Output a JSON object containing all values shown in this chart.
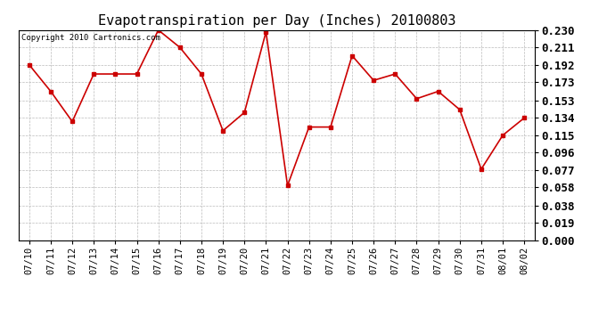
{
  "title": "Evapotranspiration per Day (Inches) 20100803",
  "copyright_text": "Copyright 2010 Cartronics.com",
  "dates": [
    "07/10",
    "07/11",
    "07/12",
    "07/13",
    "07/14",
    "07/15",
    "07/16",
    "07/17",
    "07/18",
    "07/19",
    "07/20",
    "07/21",
    "07/22",
    "07/23",
    "07/24",
    "07/25",
    "07/26",
    "07/27",
    "07/28",
    "07/29",
    "07/30",
    "07/31",
    "08/01",
    "08/02"
  ],
  "values": [
    0.192,
    0.163,
    0.13,
    0.182,
    0.182,
    0.182,
    0.23,
    0.211,
    0.182,
    0.12,
    0.14,
    0.228,
    0.06,
    0.124,
    0.124,
    0.202,
    0.175,
    0.182,
    0.155,
    0.163,
    0.143,
    0.078,
    0.115,
    0.134
  ],
  "line_color": "#cc0000",
  "marker": "s",
  "marker_size": 2.5,
  "background_color": "#ffffff",
  "grid_color": "#bbbbbb",
  "ylim": [
    0.0,
    0.23
  ],
  "yticks": [
    0.0,
    0.019,
    0.038,
    0.058,
    0.077,
    0.096,
    0.115,
    0.134,
    0.153,
    0.173,
    0.192,
    0.211,
    0.23
  ],
  "title_fontsize": 11,
  "copyright_fontsize": 6.5,
  "tick_fontsize": 7.5,
  "ytick_fontsize": 9
}
